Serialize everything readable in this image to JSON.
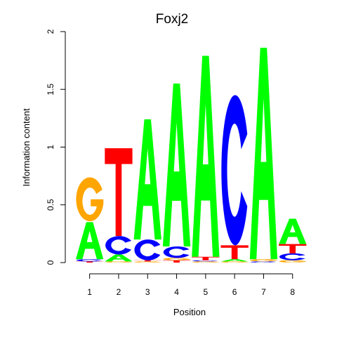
{
  "chart_data": {
    "type": "sequence-logo",
    "title": "Foxj2",
    "xlabel": "Position",
    "ylabel": "Information content",
    "ylim": [
      0,
      2
    ],
    "yticks": [
      "0",
      "0.5",
      "1",
      "1.5",
      "2"
    ],
    "xticks": [
      "1",
      "2",
      "3",
      "4",
      "5",
      "6",
      "7",
      "8"
    ],
    "colors": {
      "A": "#00ff00",
      "C": "#0000ff",
      "G": "#ffa500",
      "T": "#ff0000"
    },
    "positions": [
      {
        "position": "1",
        "stack": [
          {
            "base": "T",
            "height": 0.01
          },
          {
            "base": "C",
            "height": 0.02
          },
          {
            "base": "A",
            "height": 0.32
          },
          {
            "base": "G",
            "height": 0.38
          }
        ]
      },
      {
        "position": "2",
        "stack": [
          {
            "base": "G",
            "height": 0.01
          },
          {
            "base": "A",
            "height": 0.06
          },
          {
            "base": "C",
            "height": 0.16
          },
          {
            "base": "T",
            "height": 0.76
          }
        ]
      },
      {
        "position": "3",
        "stack": [
          {
            "base": "G",
            "height": 0.01
          },
          {
            "base": "T",
            "height": 0.01
          },
          {
            "base": "C",
            "height": 0.18
          },
          {
            "base": "A",
            "height": 1.04
          }
        ]
      },
      {
        "position": "4",
        "stack": [
          {
            "base": "T",
            "height": 0.02
          },
          {
            "base": "G",
            "height": 0.02
          },
          {
            "base": "C",
            "height": 0.1
          },
          {
            "base": "A",
            "height": 1.41
          }
        ]
      },
      {
        "position": "5",
        "stack": [
          {
            "base": "G",
            "height": 0.01
          },
          {
            "base": "C",
            "height": 0.01
          },
          {
            "base": "T",
            "height": 0.03
          },
          {
            "base": "A",
            "height": 1.74
          }
        ]
      },
      {
        "position": "6",
        "stack": [
          {
            "base": "G",
            "height": 0.01
          },
          {
            "base": "A",
            "height": 0.02
          },
          {
            "base": "T",
            "height": 0.12
          },
          {
            "base": "C",
            "height": 1.3
          }
        ]
      },
      {
        "position": "7",
        "stack": [
          {
            "base": "C",
            "height": 0.01
          },
          {
            "base": "G",
            "height": 0.02
          },
          {
            "base": "A",
            "height": 1.83
          }
        ]
      },
      {
        "position": "8",
        "stack": [
          {
            "base": "G",
            "height": 0.02
          },
          {
            "base": "C",
            "height": 0.06
          },
          {
            "base": "T",
            "height": 0.08
          },
          {
            "base": "A",
            "height": 0.22
          }
        ]
      }
    ]
  }
}
